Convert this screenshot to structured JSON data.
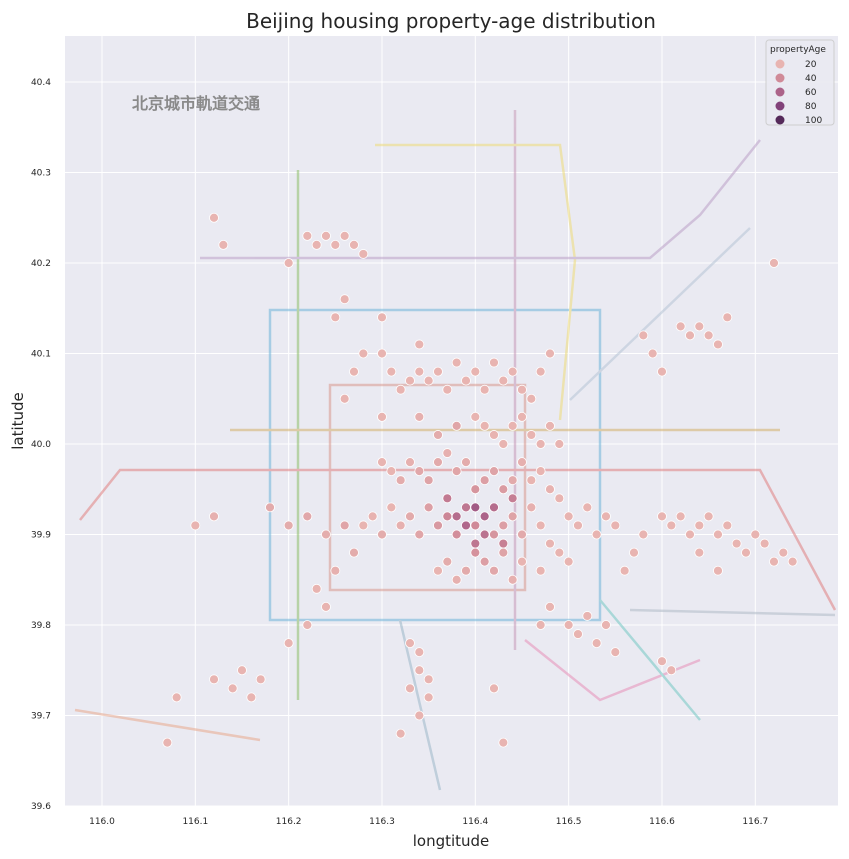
{
  "chart_data": {
    "type": "scatter",
    "title": "Beijing housing property-age distribution",
    "xlabel": "longtitude",
    "ylabel": "latitude",
    "xlim": [
      115.96,
      116.79
    ],
    "ylim": [
      39.6,
      40.45
    ],
    "xticks": [
      "116.0",
      "116.1",
      "116.2",
      "116.3",
      "116.4",
      "116.5",
      "116.6",
      "116.7"
    ],
    "yticks": [
      "39.6",
      "39.7",
      "39.8",
      "39.9",
      "40.0",
      "40.1",
      "40.2",
      "40.3",
      "40.4"
    ],
    "grid": true,
    "background_image_text": "北京城市軌道交通",
    "legend": {
      "title": "propertyAge",
      "placement": "top-right",
      "entries": [
        "20",
        "40",
        "60",
        "80",
        "100"
      ]
    },
    "hue_colors": [
      "#e8b4b1",
      "#d08a98",
      "#ac6389",
      "#82427a",
      "#552a5a"
    ],
    "points": [
      [
        116.4,
        39.91,
        40
      ],
      [
        116.41,
        39.92,
        45
      ],
      [
        116.42,
        39.9,
        35
      ],
      [
        116.39,
        39.93,
        50
      ],
      [
        116.43,
        39.91,
        30
      ],
      [
        116.44,
        39.92,
        28
      ],
      [
        116.45,
        39.9,
        25
      ],
      [
        116.46,
        39.93,
        22
      ],
      [
        116.47,
        39.91,
        20
      ],
      [
        116.38,
        39.9,
        38
      ],
      [
        116.37,
        39.92,
        42
      ],
      [
        116.36,
        39.91,
        33
      ],
      [
        116.35,
        39.93,
        30
      ],
      [
        116.34,
        39.9,
        27
      ],
      [
        116.33,
        39.92,
        25
      ],
      [
        116.32,
        39.91,
        22
      ],
      [
        116.31,
        39.93,
        20
      ],
      [
        116.3,
        39.9,
        24
      ],
      [
        116.29,
        39.92,
        21
      ],
      [
        116.28,
        39.91,
        19
      ],
      [
        116.4,
        39.88,
        36
      ],
      [
        116.41,
        39.87,
        30
      ],
      [
        116.42,
        39.86,
        26
      ],
      [
        116.43,
        39.88,
        28
      ],
      [
        116.44,
        39.85,
        22
      ],
      [
        116.45,
        39.87,
        20
      ],
      [
        116.39,
        39.86,
        25
      ],
      [
        116.38,
        39.85,
        22
      ],
      [
        116.37,
        39.87,
        24
      ],
      [
        116.36,
        39.86,
        20
      ],
      [
        116.4,
        39.95,
        35
      ],
      [
        116.41,
        39.96,
        30
      ],
      [
        116.42,
        39.97,
        28
      ],
      [
        116.43,
        39.95,
        32
      ],
      [
        116.44,
        39.96,
        25
      ],
      [
        116.45,
        39.98,
        22
      ],
      [
        116.46,
        39.96,
        20
      ],
      [
        116.47,
        39.97,
        18
      ],
      [
        116.48,
        39.95,
        21
      ],
      [
        116.49,
        39.94,
        19
      ],
      [
        116.5,
        39.92,
        18
      ],
      [
        116.51,
        39.91,
        17
      ],
      [
        116.52,
        39.93,
        16
      ],
      [
        116.53,
        39.9,
        18
      ],
      [
        116.54,
        39.92,
        15
      ],
      [
        116.55,
        39.91,
        16
      ],
      [
        116.48,
        39.89,
        20
      ],
      [
        116.49,
        39.88,
        19
      ],
      [
        116.5,
        39.87,
        18
      ],
      [
        116.47,
        39.86,
        20
      ],
      [
        116.35,
        39.96,
        28
      ],
      [
        116.34,
        39.97,
        26
      ],
      [
        116.33,
        39.98,
        22
      ],
      [
        116.32,
        39.96,
        24
      ],
      [
        116.31,
        39.97,
        20
      ],
      [
        116.3,
        39.98,
        18
      ],
      [
        116.36,
        39.98,
        25
      ],
      [
        116.37,
        39.99,
        22
      ],
      [
        116.38,
        39.97,
        27
      ],
      [
        116.39,
        39.98,
        24
      ],
      [
        116.46,
        40.01,
        18
      ],
      [
        116.47,
        40.0,
        17
      ],
      [
        116.48,
        40.02,
        16
      ],
      [
        116.49,
        40.0,
        15
      ],
      [
        116.45,
        40.03,
        17
      ],
      [
        116.44,
        40.02,
        18
      ],
      [
        116.43,
        40.0,
        20
      ],
      [
        116.42,
        40.01,
        19
      ],
      [
        116.41,
        40.02,
        18
      ],
      [
        116.4,
        40.03,
        17
      ],
      [
        116.33,
        40.07,
        15
      ],
      [
        116.34,
        40.08,
        14
      ],
      [
        116.35,
        40.07,
        16
      ],
      [
        116.36,
        40.08,
        15
      ],
      [
        116.37,
        40.06,
        14
      ],
      [
        116.38,
        40.09,
        13
      ],
      [
        116.39,
        40.07,
        15
      ],
      [
        116.4,
        40.08,
        14
      ],
      [
        116.41,
        40.06,
        16
      ],
      [
        116.42,
        40.09,
        13
      ],
      [
        116.43,
        40.07,
        14
      ],
      [
        116.44,
        40.08,
        12
      ],
      [
        116.32,
        40.06,
        15
      ],
      [
        116.31,
        40.08,
        14
      ],
      [
        116.3,
        40.1,
        12
      ],
      [
        116.34,
        40.11,
        13
      ],
      [
        116.45,
        40.06,
        14
      ],
      [
        116.46,
        40.05,
        13
      ],
      [
        116.47,
        40.08,
        12
      ],
      [
        116.48,
        40.1,
        11
      ],
      [
        116.22,
        40.23,
        16
      ],
      [
        116.23,
        40.22,
        15
      ],
      [
        116.24,
        40.23,
        14
      ],
      [
        116.25,
        40.22,
        15
      ],
      [
        116.26,
        40.23,
        13
      ],
      [
        116.27,
        40.22,
        14
      ],
      [
        116.28,
        40.21,
        13
      ],
      [
        116.12,
        40.25,
        20
      ],
      [
        116.13,
        40.22,
        18
      ],
      [
        116.2,
        40.2,
        15
      ],
      [
        116.62,
        40.13,
        14
      ],
      [
        116.63,
        40.12,
        13
      ],
      [
        116.64,
        40.13,
        12
      ],
      [
        116.65,
        40.12,
        13
      ],
      [
        116.66,
        40.11,
        12
      ],
      [
        116.67,
        40.14,
        11
      ],
      [
        116.58,
        40.12,
        13
      ],
      [
        116.59,
        40.1,
        14
      ],
      [
        116.6,
        40.08,
        12
      ],
      [
        116.72,
        40.2,
        10
      ],
      [
        116.6,
        39.92,
        15
      ],
      [
        116.61,
        39.91,
        14
      ],
      [
        116.62,
        39.92,
        13
      ],
      [
        116.63,
        39.9,
        14
      ],
      [
        116.64,
        39.91,
        12
      ],
      [
        116.65,
        39.92,
        13
      ],
      [
        116.66,
        39.9,
        12
      ],
      [
        116.67,
        39.91,
        11
      ],
      [
        116.68,
        39.89,
        12
      ],
      [
        116.69,
        39.88,
        11
      ],
      [
        116.7,
        39.9,
        10
      ],
      [
        116.71,
        39.89,
        12
      ],
      [
        116.72,
        39.87,
        11
      ],
      [
        116.73,
        39.88,
        10
      ],
      [
        116.74,
        39.87,
        9
      ],
      [
        116.66,
        39.86,
        12
      ],
      [
        116.64,
        39.88,
        13
      ],
      [
        116.58,
        39.9,
        14
      ],
      [
        116.57,
        39.88,
        15
      ],
      [
        116.56,
        39.86,
        13
      ],
      [
        116.33,
        39.78,
        12
      ],
      [
        116.34,
        39.77,
        11
      ],
      [
        116.34,
        39.75,
        12
      ],
      [
        116.35,
        39.74,
        10
      ],
      [
        116.33,
        39.73,
        11
      ],
      [
        116.35,
        39.72,
        9
      ],
      [
        116.34,
        39.7,
        10
      ],
      [
        116.32,
        39.68,
        8
      ],
      [
        116.43,
        39.67,
        10
      ],
      [
        116.42,
        39.73,
        12
      ],
      [
        116.5,
        39.8,
        10
      ],
      [
        116.51,
        39.79,
        9
      ],
      [
        116.52,
        39.81,
        10
      ],
      [
        116.53,
        39.78,
        9
      ],
      [
        116.54,
        39.8,
        8
      ],
      [
        116.55,
        39.77,
        9
      ],
      [
        116.6,
        39.76,
        8
      ],
      [
        116.61,
        39.75,
        9
      ],
      [
        116.48,
        39.82,
        11
      ],
      [
        116.47,
        39.8,
        12
      ],
      [
        116.12,
        39.74,
        14
      ],
      [
        116.14,
        39.73,
        13
      ],
      [
        116.15,
        39.75,
        12
      ],
      [
        116.16,
        39.72,
        14
      ],
      [
        116.17,
        39.74,
        13
      ],
      [
        116.08,
        39.72,
        12
      ],
      [
        116.07,
        39.67,
        15
      ],
      [
        116.2,
        39.78,
        12
      ],
      [
        116.22,
        39.8,
        13
      ],
      [
        116.24,
        39.82,
        15
      ],
      [
        116.1,
        39.91,
        20
      ],
      [
        116.12,
        39.92,
        22
      ],
      [
        116.18,
        39.93,
        25
      ],
      [
        116.2,
        39.91,
        24
      ],
      [
        116.22,
        39.92,
        26
      ],
      [
        116.24,
        39.9,
        23
      ],
      [
        116.26,
        39.91,
        27
      ],
      [
        116.27,
        39.88,
        24
      ],
      [
        116.25,
        39.86,
        22
      ],
      [
        116.23,
        39.84,
        20
      ],
      [
        116.26,
        40.05,
        18
      ],
      [
        116.27,
        40.08,
        17
      ],
      [
        116.28,
        40.1,
        16
      ],
      [
        116.25,
        40.14,
        15
      ],
      [
        116.26,
        40.16,
        14
      ],
      [
        116.3,
        40.14,
        15
      ],
      [
        116.38,
        40.02,
        27
      ],
      [
        116.36,
        40.01,
        24
      ],
      [
        116.34,
        40.03,
        22
      ],
      [
        116.3,
        40.03,
        20
      ],
      [
        116.41,
        39.92,
        60
      ],
      [
        116.4,
        39.93,
        65
      ],
      [
        116.42,
        39.93,
        55
      ],
      [
        116.39,
        39.91,
        58
      ],
      [
        116.41,
        39.9,
        52
      ],
      [
        116.37,
        39.94,
        48
      ],
      [
        116.44,
        39.94,
        46
      ],
      [
        116.43,
        39.89,
        45
      ],
      [
        116.4,
        39.89,
        50
      ],
      [
        116.38,
        39.92,
        55
      ]
    ]
  }
}
